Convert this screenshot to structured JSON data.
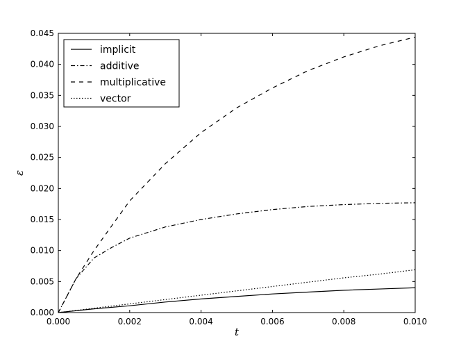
{
  "chart_data": {
    "type": "line",
    "title": "",
    "xlabel": "t",
    "ylabel": "ε",
    "xlim": [
      0.0,
      0.01
    ],
    "ylim": [
      0.0,
      0.045
    ],
    "xticks": [
      "0.000",
      "0.002",
      "0.004",
      "0.006",
      "0.008",
      "0.010"
    ],
    "yticks": [
      "0.000",
      "0.005",
      "0.010",
      "0.015",
      "0.020",
      "0.025",
      "0.030",
      "0.035",
      "0.040",
      "0.045"
    ],
    "grid": false,
    "legend_position": "top-left",
    "series": [
      {
        "name": "implicit",
        "style": "solid",
        "color": "#000000",
        "x": [
          0,
          0.001,
          0.002,
          0.003,
          0.004,
          0.005,
          0.006,
          0.007,
          0.008,
          0.009,
          0.01
        ],
        "y": [
          0,
          0.0006,
          0.0011,
          0.0017,
          0.0022,
          0.0026,
          0.003,
          0.0033,
          0.0036,
          0.0038,
          0.004
        ]
      },
      {
        "name": "additive",
        "style": "dashdot",
        "color": "#000000",
        "x": [
          0,
          0.0005,
          0.001,
          0.0015,
          0.002,
          0.003,
          0.004,
          0.005,
          0.006,
          0.007,
          0.008,
          0.009,
          0.01
        ],
        "y": [
          0,
          0.0055,
          0.0088,
          0.0105,
          0.012,
          0.0138,
          0.015,
          0.0159,
          0.0166,
          0.0171,
          0.0174,
          0.0176,
          0.0177
        ]
      },
      {
        "name": "multiplicative",
        "style": "dashed",
        "color": "#000000",
        "x": [
          0,
          0.0005,
          0.001,
          0.0015,
          0.002,
          0.003,
          0.004,
          0.005,
          0.006,
          0.007,
          0.008,
          0.009,
          0.01
        ],
        "y": [
          0,
          0.0055,
          0.01,
          0.014,
          0.018,
          0.024,
          0.029,
          0.033,
          0.0362,
          0.039,
          0.0412,
          0.043,
          0.0444
        ]
      },
      {
        "name": "vector",
        "style": "dotted",
        "color": "#000000",
        "x": [
          0,
          0.001,
          0.002,
          0.003,
          0.004,
          0.005,
          0.006,
          0.007,
          0.008,
          0.009,
          0.01
        ],
        "y": [
          0,
          0.0007,
          0.0014,
          0.0021,
          0.0028,
          0.0035,
          0.0042,
          0.0049,
          0.0056,
          0.0062,
          0.0069
        ]
      }
    ]
  }
}
